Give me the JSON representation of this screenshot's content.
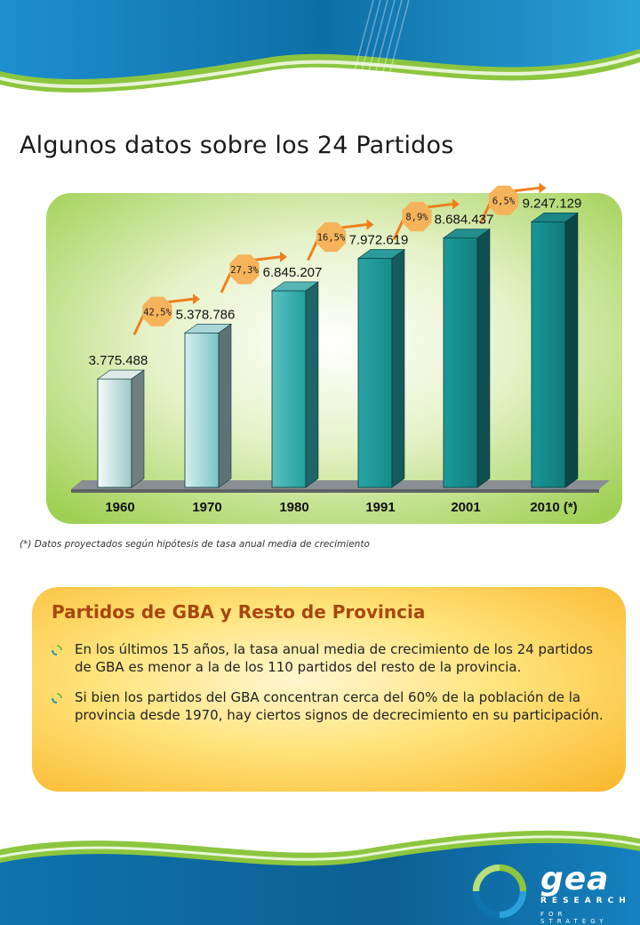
{
  "title": "Algunos datos sobre los 24 Partidos",
  "footnote": "(*) Datos proyectados según hipótesis de tasa anual media de crecimiento",
  "colors": {
    "chart_bg": "#9fd053",
    "bar_main": "#1a8f8f",
    "growth_badge": "#f6b35a",
    "growth_arrow": "#ef7f1a",
    "panel_title": "#a8470d",
    "wave_green": "#8cc63f",
    "wave_blue": "#0f7ab8"
  },
  "chart_data": {
    "type": "bar",
    "title": "",
    "xlabel": "",
    "ylabel": "",
    "categories": [
      "1960",
      "1970",
      "1980",
      "1991",
      "2001",
      "2010 (*)"
    ],
    "values": [
      3775488,
      5378786,
      6845207,
      7972619,
      8684437,
      9247129
    ],
    "value_labels": [
      "3.775.488",
      "5.378.786",
      "6.845.207",
      "7.972.619",
      "8.684.437",
      "9.247.129"
    ],
    "growth_labels": [
      "42,5%",
      "27,3%",
      "16,5%",
      "8,9%",
      "6,5%"
    ],
    "ylim": [
      0,
      10000000
    ],
    "grid": false,
    "legend": "none"
  },
  "panel": {
    "title": "Partidos de GBA y Resto de Provincia",
    "bullets": [
      "En los últimos 15 años, la tasa anual media de crecimiento de los 24 partidos de GBA es menor a la de los 110 partidos del resto de la provincia.",
      "Si bien los partidos del GBA concentran cerca del 60% de la población de la provincia desde 1970, hay ciertos signos de decrecimiento en su participación."
    ]
  },
  "logo": {
    "brand": "gea",
    "line1": "RESEARCH",
    "line2": "FOR STRATEGY"
  }
}
